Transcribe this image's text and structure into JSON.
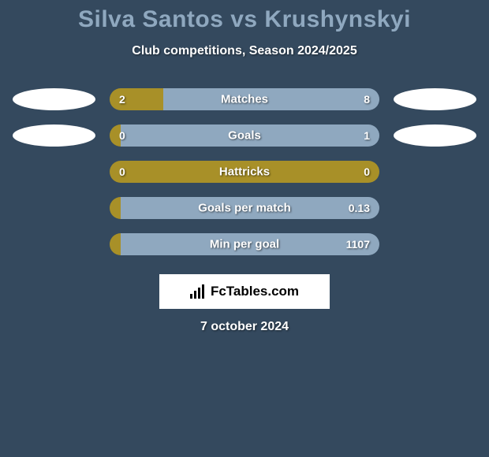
{
  "title": "Silva Santos vs Krushynskyi",
  "subtitle": "Club competitions, Season 2024/2025",
  "date": "7 october 2024",
  "logo_text": "FcTables.com",
  "colors": {
    "background": "#34495e",
    "title": "#8fa8bf",
    "text": "#ffffff",
    "left_accent": "#a89028",
    "right_accent": "#8fa8bf",
    "ellipse_left": "#ffffff",
    "ellipse_right": "#ffffff",
    "logo_bg": "#ffffff"
  },
  "stats": [
    {
      "label": "Matches",
      "left_val": "2",
      "right_val": "8",
      "left_pct": 20,
      "show_ellipse": true
    },
    {
      "label": "Goals",
      "left_val": "0",
      "right_val": "1",
      "left_pct": 4,
      "show_ellipse": true
    },
    {
      "label": "Hattricks",
      "left_val": "0",
      "right_val": "0",
      "left_pct": 100,
      "show_ellipse": false
    },
    {
      "label": "Goals per match",
      "left_val": "",
      "right_val": "0.13",
      "left_pct": 4,
      "show_ellipse": false
    },
    {
      "label": "Min per goal",
      "left_val": "",
      "right_val": "1107",
      "left_pct": 4,
      "show_ellipse": false
    }
  ]
}
